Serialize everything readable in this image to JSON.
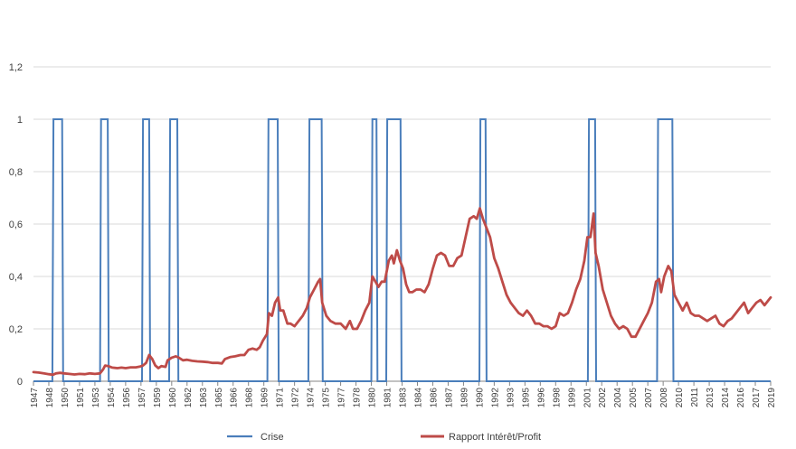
{
  "chart_data": {
    "type": "line",
    "x_start": 1947,
    "x_end": 2019,
    "x_tick_labels": [
      "1947",
      "1948",
      "1950",
      "1951",
      "1953",
      "1954",
      "1956",
      "1957",
      "1959",
      "1960",
      "1962",
      "1963",
      "1965",
      "1966",
      "1968",
      "1969",
      "1971",
      "1972",
      "1974",
      "1975",
      "1977",
      "1978",
      "1980",
      "1981",
      "1983",
      "1984",
      "1986",
      "1987",
      "1989",
      "1990",
      "1992",
      "1993",
      "1995",
      "1996",
      "1998",
      "1999",
      "2001",
      "2002",
      "2004",
      "2005",
      "2007",
      "2008",
      "2010",
      "2011",
      "2013",
      "2014",
      "2016",
      "2017",
      "2019"
    ],
    "y_tick_labels": [
      "0",
      "0,2",
      "0,4",
      "0,6",
      "0,8",
      "1",
      "1,2"
    ],
    "ylim": [
      0,
      1.2
    ],
    "grid": true,
    "legend_position": "bottom",
    "colors": {
      "crise": "#4a7ebb",
      "rapport": "#be4b48",
      "grid": "#d9d9d9",
      "axis": "#868686"
    },
    "series": [
      {
        "name": "Crise",
        "step_points": [
          [
            1947.0,
            0
          ],
          [
            1948.85,
            0
          ],
          [
            1948.95,
            1
          ],
          [
            1949.8,
            1
          ],
          [
            1949.9,
            0
          ],
          [
            1953.5,
            0
          ],
          [
            1953.6,
            1
          ],
          [
            1954.25,
            1
          ],
          [
            1954.35,
            0
          ],
          [
            1957.6,
            0
          ],
          [
            1957.7,
            1
          ],
          [
            1958.3,
            1
          ],
          [
            1958.4,
            0
          ],
          [
            1960.25,
            0
          ],
          [
            1960.35,
            1
          ],
          [
            1961.05,
            1
          ],
          [
            1961.15,
            0
          ],
          [
            1969.85,
            0
          ],
          [
            1969.95,
            1
          ],
          [
            1970.85,
            1
          ],
          [
            1970.95,
            0
          ],
          [
            1973.85,
            0
          ],
          [
            1973.95,
            1
          ],
          [
            1975.15,
            1
          ],
          [
            1975.25,
            0
          ],
          [
            1980.0,
            0
          ],
          [
            1980.1,
            1
          ],
          [
            1980.5,
            1
          ],
          [
            1980.6,
            0
          ],
          [
            1981.45,
            0
          ],
          [
            1981.55,
            1
          ],
          [
            1982.85,
            1
          ],
          [
            1982.95,
            0
          ],
          [
            1990.55,
            0
          ],
          [
            1990.65,
            1
          ],
          [
            1991.15,
            1
          ],
          [
            1991.25,
            0
          ],
          [
            2001.15,
            0
          ],
          [
            2001.25,
            1
          ],
          [
            2001.85,
            1
          ],
          [
            2001.95,
            0
          ],
          [
            2007.9,
            0
          ],
          [
            2008.0,
            1
          ],
          [
            2009.4,
            1
          ],
          [
            2009.5,
            0
          ],
          [
            2019.0,
            0
          ]
        ]
      },
      {
        "name": "Rapport Intérêt/Profit",
        "points": [
          [
            1947.0,
            0.035
          ],
          [
            1947.5,
            0.033
          ],
          [
            1948.0,
            0.03
          ],
          [
            1948.5,
            0.027
          ],
          [
            1948.9,
            0.025
          ],
          [
            1949.2,
            0.03
          ],
          [
            1949.6,
            0.032
          ],
          [
            1950.0,
            0.03
          ],
          [
            1950.5,
            0.028
          ],
          [
            1951.0,
            0.026
          ],
          [
            1951.5,
            0.028
          ],
          [
            1952.0,
            0.027
          ],
          [
            1952.5,
            0.03
          ],
          [
            1953.0,
            0.028
          ],
          [
            1953.5,
            0.03
          ],
          [
            1953.8,
            0.045
          ],
          [
            1954.0,
            0.06
          ],
          [
            1954.3,
            0.058
          ],
          [
            1954.7,
            0.052
          ],
          [
            1955.2,
            0.05
          ],
          [
            1955.6,
            0.052
          ],
          [
            1956.0,
            0.05
          ],
          [
            1956.5,
            0.053
          ],
          [
            1957.0,
            0.053
          ],
          [
            1957.4,
            0.056
          ],
          [
            1957.7,
            0.06
          ],
          [
            1958.0,
            0.07
          ],
          [
            1958.3,
            0.1
          ],
          [
            1958.6,
            0.085
          ],
          [
            1958.9,
            0.06
          ],
          [
            1959.2,
            0.05
          ],
          [
            1959.5,
            0.058
          ],
          [
            1959.9,
            0.055
          ],
          [
            1960.1,
            0.08
          ],
          [
            1960.5,
            0.09
          ],
          [
            1960.9,
            0.095
          ],
          [
            1961.2,
            0.09
          ],
          [
            1961.6,
            0.08
          ],
          [
            1962.0,
            0.082
          ],
          [
            1962.5,
            0.078
          ],
          [
            1963.0,
            0.076
          ],
          [
            1963.5,
            0.075
          ],
          [
            1964.0,
            0.073
          ],
          [
            1964.5,
            0.07
          ],
          [
            1965.0,
            0.07
          ],
          [
            1965.4,
            0.068
          ],
          [
            1965.7,
            0.085
          ],
          [
            1966.2,
            0.092
          ],
          [
            1966.7,
            0.095
          ],
          [
            1967.2,
            0.1
          ],
          [
            1967.6,
            0.1
          ],
          [
            1968.0,
            0.12
          ],
          [
            1968.4,
            0.125
          ],
          [
            1968.8,
            0.12
          ],
          [
            1969.1,
            0.13
          ],
          [
            1969.4,
            0.155
          ],
          [
            1969.8,
            0.18
          ],
          [
            1970.0,
            0.26
          ],
          [
            1970.3,
            0.25
          ],
          [
            1970.6,
            0.3
          ],
          [
            1970.9,
            0.32
          ],
          [
            1971.1,
            0.27
          ],
          [
            1971.4,
            0.27
          ],
          [
            1971.8,
            0.22
          ],
          [
            1972.1,
            0.22
          ],
          [
            1972.5,
            0.21
          ],
          [
            1972.9,
            0.23
          ],
          [
            1973.3,
            0.25
          ],
          [
            1973.7,
            0.28
          ],
          [
            1974.0,
            0.32
          ],
          [
            1974.4,
            0.35
          ],
          [
            1974.8,
            0.38
          ],
          [
            1975.0,
            0.39
          ],
          [
            1975.2,
            0.3
          ],
          [
            1975.6,
            0.25
          ],
          [
            1976.0,
            0.23
          ],
          [
            1976.5,
            0.22
          ],
          [
            1977.0,
            0.22
          ],
          [
            1977.5,
            0.2
          ],
          [
            1977.9,
            0.23
          ],
          [
            1978.2,
            0.2
          ],
          [
            1978.6,
            0.2
          ],
          [
            1979.0,
            0.23
          ],
          [
            1979.4,
            0.27
          ],
          [
            1979.8,
            0.3
          ],
          [
            1980.1,
            0.4
          ],
          [
            1980.4,
            0.38
          ],
          [
            1980.7,
            0.36
          ],
          [
            1981.0,
            0.38
          ],
          [
            1981.3,
            0.38
          ],
          [
            1981.7,
            0.46
          ],
          [
            1982.0,
            0.48
          ],
          [
            1982.2,
            0.45
          ],
          [
            1982.5,
            0.5
          ],
          [
            1982.8,
            0.46
          ],
          [
            1983.1,
            0.43
          ],
          [
            1983.4,
            0.37
          ],
          [
            1983.7,
            0.34
          ],
          [
            1984.0,
            0.34
          ],
          [
            1984.4,
            0.35
          ],
          [
            1984.8,
            0.35
          ],
          [
            1985.2,
            0.34
          ],
          [
            1985.6,
            0.37
          ],
          [
            1986.0,
            0.43
          ],
          [
            1986.4,
            0.48
          ],
          [
            1986.8,
            0.49
          ],
          [
            1987.2,
            0.48
          ],
          [
            1987.6,
            0.44
          ],
          [
            1988.0,
            0.44
          ],
          [
            1988.4,
            0.47
          ],
          [
            1988.8,
            0.48
          ],
          [
            1989.2,
            0.55
          ],
          [
            1989.6,
            0.62
          ],
          [
            1990.0,
            0.63
          ],
          [
            1990.3,
            0.62
          ],
          [
            1990.6,
            0.66
          ],
          [
            1990.9,
            0.62
          ],
          [
            1991.2,
            0.59
          ],
          [
            1991.6,
            0.55
          ],
          [
            1992.0,
            0.47
          ],
          [
            1992.4,
            0.43
          ],
          [
            1992.8,
            0.38
          ],
          [
            1993.2,
            0.33
          ],
          [
            1993.6,
            0.3
          ],
          [
            1994.0,
            0.28
          ],
          [
            1994.4,
            0.26
          ],
          [
            1994.8,
            0.25
          ],
          [
            1995.2,
            0.27
          ],
          [
            1995.6,
            0.25
          ],
          [
            1996.0,
            0.22
          ],
          [
            1996.4,
            0.22
          ],
          [
            1996.8,
            0.21
          ],
          [
            1997.2,
            0.21
          ],
          [
            1997.6,
            0.2
          ],
          [
            1998.0,
            0.21
          ],
          [
            1998.4,
            0.26
          ],
          [
            1998.8,
            0.25
          ],
          [
            1999.2,
            0.26
          ],
          [
            1999.6,
            0.3
          ],
          [
            2000.0,
            0.35
          ],
          [
            2000.4,
            0.39
          ],
          [
            2000.8,
            0.46
          ],
          [
            2001.1,
            0.55
          ],
          [
            2001.4,
            0.55
          ],
          [
            2001.7,
            0.64
          ],
          [
            2001.9,
            0.49
          ],
          [
            2002.2,
            0.44
          ],
          [
            2002.6,
            0.35
          ],
          [
            2003.0,
            0.3
          ],
          [
            2003.4,
            0.25
          ],
          [
            2003.8,
            0.22
          ],
          [
            2004.2,
            0.2
          ],
          [
            2004.6,
            0.21
          ],
          [
            2005.0,
            0.2
          ],
          [
            2005.4,
            0.17
          ],
          [
            2005.8,
            0.17
          ],
          [
            2006.2,
            0.2
          ],
          [
            2006.6,
            0.23
          ],
          [
            2007.0,
            0.26
          ],
          [
            2007.4,
            0.3
          ],
          [
            2007.8,
            0.38
          ],
          [
            2008.1,
            0.39
          ],
          [
            2008.3,
            0.34
          ],
          [
            2008.6,
            0.4
          ],
          [
            2009.0,
            0.44
          ],
          [
            2009.3,
            0.42
          ],
          [
            2009.6,
            0.33
          ],
          [
            2010.0,
            0.3
          ],
          [
            2010.4,
            0.27
          ],
          [
            2010.8,
            0.3
          ],
          [
            2011.2,
            0.26
          ],
          [
            2011.6,
            0.25
          ],
          [
            2012.0,
            0.25
          ],
          [
            2012.4,
            0.24
          ],
          [
            2012.8,
            0.23
          ],
          [
            2013.2,
            0.24
          ],
          [
            2013.6,
            0.25
          ],
          [
            2014.0,
            0.22
          ],
          [
            2014.4,
            0.21
          ],
          [
            2014.8,
            0.23
          ],
          [
            2015.2,
            0.24
          ],
          [
            2015.6,
            0.26
          ],
          [
            2016.0,
            0.28
          ],
          [
            2016.4,
            0.3
          ],
          [
            2016.8,
            0.26
          ],
          [
            2017.2,
            0.28
          ],
          [
            2017.6,
            0.3
          ],
          [
            2018.0,
            0.31
          ],
          [
            2018.4,
            0.29
          ],
          [
            2018.8,
            0.31
          ],
          [
            2019.0,
            0.32
          ]
        ]
      }
    ]
  }
}
